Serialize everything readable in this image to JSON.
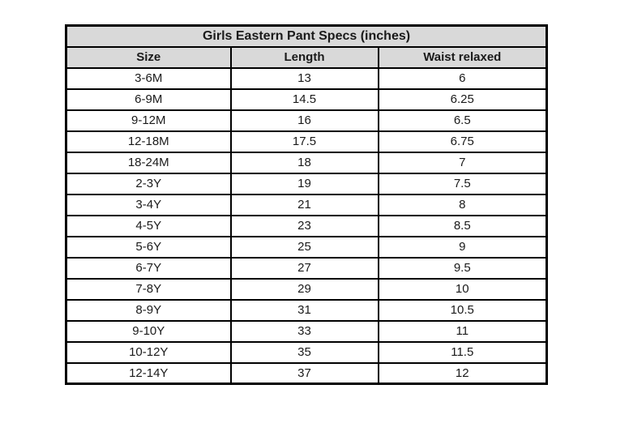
{
  "table": {
    "title": "Girls Eastern Pant Specs (inches)",
    "columns": [
      "Size",
      "Length",
      "Waist relaxed"
    ],
    "rows": [
      [
        "3-6M",
        "13",
        "6"
      ],
      [
        "6-9M",
        "14.5",
        "6.25"
      ],
      [
        "9-12M",
        "16",
        "6.5"
      ],
      [
        "12-18M",
        "17.5",
        "6.75"
      ],
      [
        "18-24M",
        "18",
        "7"
      ],
      [
        "2-3Y",
        "19",
        "7.5"
      ],
      [
        "3-4Y",
        "21",
        "8"
      ],
      [
        "4-5Y",
        "23",
        "8.5"
      ],
      [
        "5-6Y",
        "25",
        "9"
      ],
      [
        "6-7Y",
        "27",
        "9.5"
      ],
      [
        "7-8Y",
        "29",
        "10"
      ],
      [
        "8-9Y",
        "31",
        "10.5"
      ],
      [
        "9-10Y",
        "33",
        "11"
      ],
      [
        "10-12Y",
        "35",
        "11.5"
      ],
      [
        "12-14Y",
        "37",
        "12"
      ]
    ],
    "colors": {
      "page_bg": "#ffffff",
      "header_bg": "#d9d9d9",
      "row_bg": "#ffffff",
      "border": "#000000",
      "text": "#1a1a1a"
    }
  }
}
